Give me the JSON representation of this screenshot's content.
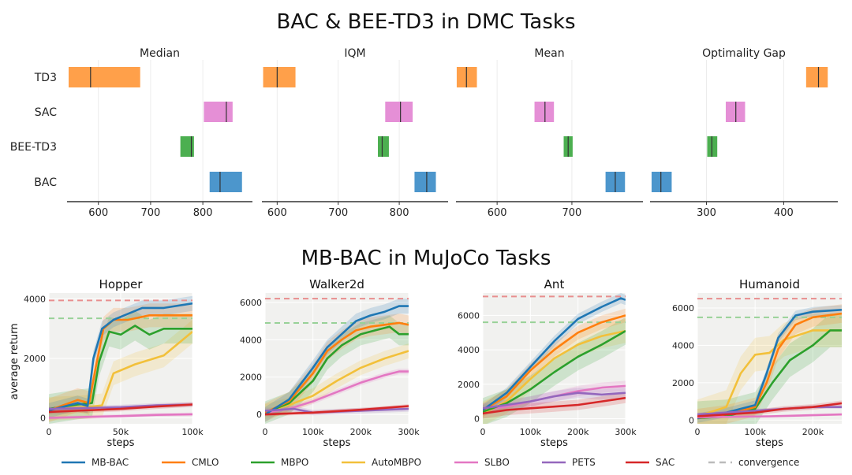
{
  "figure": {
    "title_top": "BAC & BEE-TD3 in DMC Tasks",
    "title_bottom": "MB-BAC in MuJoCo Tasks"
  },
  "colors": {
    "TD3": "#FFA04A",
    "SAC": "#E58FD6",
    "BEE-TD3": "#4CAF50",
    "BAC": "#4C96CC",
    "MB-BAC": "#1F77B4",
    "CMLO": "#FF7F0E",
    "MBPO": "#2CA02C",
    "AutoMBPO": "#F2C03A",
    "SLBO": "#E377C2",
    "PETS": "#9467BD",
    "SAC_curve": "#D62728",
    "convergence": "#BBBBBB",
    "conv_red": "#E88E8E",
    "conv_green": "#98D198"
  },
  "chart_data": [
    {
      "type": "bar",
      "subtype": "interval",
      "title": "Median",
      "categories": [
        "TD3",
        "SAC",
        "BEE-TD3",
        "BAC"
      ],
      "intervals": [
        {
          "name": "TD3",
          "low": 543,
          "high": 680,
          "point": 585
        },
        {
          "name": "SAC",
          "low": 802,
          "high": 857,
          "point": 845
        },
        {
          "name": "BEE-TD3",
          "low": 757,
          "high": 783,
          "point": 778
        },
        {
          "name": "BAC",
          "low": 813,
          "high": 875,
          "point": 833
        }
      ],
      "xlim": [
        540,
        895
      ],
      "xticks": [
        600,
        700,
        800
      ]
    },
    {
      "type": "bar",
      "subtype": "interval",
      "title": "IQM",
      "categories": [
        "TD3",
        "SAC",
        "BEE-TD3",
        "BAC"
      ],
      "intervals": [
        {
          "name": "TD3",
          "low": 577,
          "high": 630,
          "point": 600
        },
        {
          "name": "SAC",
          "low": 777,
          "high": 822,
          "point": 802
        },
        {
          "name": "BEE-TD3",
          "low": 765,
          "high": 783,
          "point": 772
        },
        {
          "name": "BAC",
          "low": 825,
          "high": 860,
          "point": 845
        }
      ],
      "xlim": [
        575,
        880
      ],
      "xticks": [
        600,
        700,
        800
      ]
    },
    {
      "type": "bar",
      "subtype": "interval",
      "title": "Mean",
      "categories": [
        "TD3",
        "SAC",
        "BEE-TD3",
        "BAC"
      ],
      "intervals": [
        {
          "name": "TD3",
          "low": 546,
          "high": 573,
          "point": 559
        },
        {
          "name": "SAC",
          "low": 650,
          "high": 676,
          "point": 664
        },
        {
          "name": "BEE-TD3",
          "low": 689,
          "high": 701,
          "point": 695
        },
        {
          "name": "BAC",
          "low": 745,
          "high": 771,
          "point": 758
        }
      ],
      "xlim": [
        545,
        795
      ],
      "xticks": [
        600,
        700
      ]
    },
    {
      "type": "bar",
      "subtype": "interval",
      "title": "Optimality Gap",
      "categories": [
        "TD3",
        "SAC",
        "BEE-TD3",
        "BAC"
      ],
      "intervals": [
        {
          "name": "TD3",
          "low": 429,
          "high": 457,
          "point": 445
        },
        {
          "name": "SAC",
          "low": 325,
          "high": 350,
          "point": 338
        },
        {
          "name": "BEE-TD3",
          "low": 301,
          "high": 314,
          "point": 307
        },
        {
          "name": "BAC",
          "low": 229,
          "high": 255,
          "point": 241
        }
      ],
      "xlim": [
        227,
        470
      ],
      "xticks": [
        300,
        400
      ]
    },
    {
      "type": "line",
      "title": "Hopper",
      "xlabel": "steps",
      "ylabel": "average return",
      "xlim": [
        0,
        100000
      ],
      "ylim": [
        -200,
        4200
      ],
      "xticks": [
        0,
        50000,
        100000
      ],
      "xticklabels": [
        "0",
        "50k",
        "100k"
      ],
      "yticks": [
        0,
        2000,
        4000
      ],
      "yticklabels": [
        "0",
        "2000",
        "4000"
      ],
      "convergence": [
        {
          "color": "conv_red",
          "y": 3950
        },
        {
          "color": "conv_green",
          "y": 3350
        }
      ],
      "series": [
        {
          "name": "AutoMBPO",
          "x": [
            0,
            20000,
            30000,
            37000,
            45000,
            60000,
            80000,
            100000
          ],
          "y": [
            300,
            350,
            380,
            420,
            1500,
            1800,
            2100,
            2900
          ],
          "band": 400
        },
        {
          "name": "MBPO",
          "x": [
            0,
            20000,
            30000,
            35000,
            42000,
            50000,
            60000,
            70000,
            80000,
            90000,
            100000
          ],
          "y": [
            300,
            450,
            500,
            1900,
            2900,
            2800,
            3100,
            2800,
            3000,
            3000,
            3000
          ],
          "band": 500
        },
        {
          "name": "CMLO",
          "x": [
            0,
            20000,
            28000,
            33000,
            38000,
            45000,
            55000,
            70000,
            85000,
            100000
          ],
          "y": [
            250,
            600,
            500,
            1800,
            3000,
            3300,
            3300,
            3450,
            3450,
            3450
          ],
          "band": 400
        },
        {
          "name": "MB-BAC",
          "x": [
            0,
            20000,
            27000,
            31000,
            37000,
            45000,
            55000,
            65000,
            80000,
            100000
          ],
          "y": [
            250,
            500,
            400,
            2000,
            3000,
            3300,
            3500,
            3700,
            3700,
            3850
          ],
          "band": 250
        },
        {
          "name": "SLBO",
          "x": [
            0,
            25000,
            50000,
            75000,
            100000
          ],
          "y": [
            0,
            30,
            60,
            100,
            120
          ],
          "band": 60
        },
        {
          "name": "PETS",
          "x": [
            0,
            25000,
            50000,
            75000,
            100000
          ],
          "y": [
            300,
            330,
            360,
            420,
            450
          ],
          "band": 80
        },
        {
          "name": "SAC",
          "x": [
            0,
            25000,
            50000,
            75000,
            100000
          ],
          "y": [
            200,
            250,
            300,
            380,
            450
          ],
          "band": 80
        }
      ]
    },
    {
      "type": "line",
      "title": "Walker2d",
      "xlabel": "steps",
      "ylabel": "",
      "xlim": [
        0,
        300000
      ],
      "ylim": [
        -500,
        6500
      ],
      "xticks": [
        0,
        100000,
        200000,
        300000
      ],
      "xticklabels": [
        "0",
        "100k",
        "200k",
        "300k"
      ],
      "yticks": [
        0,
        2000,
        4000,
        6000
      ],
      "yticklabels": [
        "0",
        "2000",
        "4000",
        "6000"
      ],
      "convergence": [
        {
          "color": "conv_red",
          "y": 6200
        },
        {
          "color": "conv_green",
          "y": 4900
        }
      ],
      "series": [
        {
          "name": "SLBO",
          "x": [
            0,
            50000,
            100000,
            150000,
            200000,
            250000,
            280000,
            300000
          ],
          "y": [
            100,
            300,
            700,
            1200,
            1700,
            2100,
            2300,
            2300
          ],
          "band": 150
        },
        {
          "name": "AutoMBPO",
          "x": [
            0,
            50000,
            100000,
            150000,
            200000,
            250000,
            300000
          ],
          "y": [
            150,
            500,
            1000,
            1800,
            2500,
            3000,
            3400
          ],
          "band": 400
        },
        {
          "name": "MBPO",
          "x": [
            0,
            50000,
            100000,
            130000,
            160000,
            200000,
            230000,
            260000,
            280000,
            300000
          ],
          "y": [
            100,
            600,
            1800,
            3000,
            3700,
            4300,
            4500,
            4700,
            4300,
            4300
          ],
          "band": 600
        },
        {
          "name": "CMLO",
          "x": [
            0,
            50000,
            100000,
            130000,
            160000,
            190000,
            220000,
            250000,
            280000,
            300000
          ],
          "y": [
            100,
            700,
            2200,
            3400,
            4000,
            4500,
            4700,
            4800,
            4900,
            4800
          ],
          "band": 500
        },
        {
          "name": "MB-BAC",
          "x": [
            0,
            50000,
            100000,
            130000,
            160000,
            190000,
            220000,
            250000,
            280000,
            300000
          ],
          "y": [
            0,
            800,
            2500,
            3600,
            4300,
            5000,
            5300,
            5500,
            5800,
            5800
          ],
          "band": 400
        },
        {
          "name": "PETS",
          "x": [
            0,
            60000,
            100000,
            150000,
            200000,
            250000,
            300000
          ],
          "y": [
            200,
            300,
            100,
            150,
            200,
            250,
            300
          ],
          "band": 150
        },
        {
          "name": "SAC",
          "x": [
            0,
            100000,
            200000,
            250000,
            300000
          ],
          "y": [
            0,
            100,
            250,
            350,
            450
          ],
          "band": 100
        }
      ]
    },
    {
      "type": "line",
      "title": "Ant",
      "xlabel": "steps",
      "ylabel": "",
      "xlim": [
        0,
        300000
      ],
      "ylim": [
        -300,
        7300
      ],
      "xticks": [
        0,
        100000,
        200000,
        300000
      ],
      "xticklabels": [
        "0",
        "100k",
        "200k",
        "300k"
      ],
      "yticks": [
        0,
        2000,
        4000,
        6000
      ],
      "yticklabels": [
        "0",
        "2000",
        "4000",
        "6000"
      ],
      "convergence": [
        {
          "color": "conv_red",
          "y": 7100
        },
        {
          "color": "conv_green",
          "y": 5600
        }
      ],
      "series": [
        {
          "name": "SLBO",
          "x": [
            0,
            50000,
            100000,
            150000,
            200000,
            250000,
            300000
          ],
          "y": [
            500,
            700,
            1000,
            1300,
            1600,
            1800,
            1900
          ],
          "band": 300
        },
        {
          "name": "AutoMBPO",
          "x": [
            0,
            50000,
            100000,
            150000,
            200000,
            250000,
            300000
          ],
          "y": [
            300,
            1000,
            2300,
            3500,
            4300,
            4800,
            5100
          ],
          "band": 700
        },
        {
          "name": "MBPO",
          "x": [
            0,
            50000,
            100000,
            150000,
            200000,
            250000,
            300000
          ],
          "y": [
            400,
            900,
            1700,
            2700,
            3600,
            4300,
            5100
          ],
          "band": 800
        },
        {
          "name": "CMLO",
          "x": [
            0,
            50000,
            100000,
            150000,
            200000,
            250000,
            300000
          ],
          "y": [
            500,
            1300,
            2800,
            4000,
            5000,
            5600,
            6000
          ],
          "band": 400
        },
        {
          "name": "MB-BAC",
          "x": [
            0,
            50000,
            100000,
            150000,
            200000,
            250000,
            290000,
            300000
          ],
          "y": [
            500,
            1500,
            3000,
            4500,
            5800,
            6500,
            7000,
            6900
          ],
          "band": 300
        },
        {
          "name": "PETS",
          "x": [
            0,
            50000,
            100000,
            150000,
            200000,
            250000,
            300000
          ],
          "y": [
            600,
            800,
            1000,
            1300,
            1500,
            1400,
            1500
          ],
          "band": 300
        },
        {
          "name": "SAC",
          "x": [
            0,
            50000,
            100000,
            150000,
            200000,
            250000,
            300000
          ],
          "y": [
            300,
            500,
            600,
            700,
            800,
            1000,
            1200
          ],
          "band": 300
        }
      ]
    },
    {
      "type": "line",
      "title": "Humanoid",
      "xlabel": "steps",
      "ylabel": "",
      "xlim": [
        0,
        250000
      ],
      "ylim": [
        -200,
        6800
      ],
      "xticks": [
        0,
        100000,
        200000
      ],
      "xticklabels": [
        "0",
        "100k",
        "200k"
      ],
      "yticks": [
        0,
        2000,
        4000,
        6000
      ],
      "yticklabels": [
        "0",
        "2000",
        "4000",
        "6000"
      ],
      "convergence": [
        {
          "color": "conv_red",
          "y": 6500
        },
        {
          "color": "conv_green",
          "y": 5500
        }
      ],
      "series": [
        {
          "name": "AutoMBPO",
          "x": [
            0,
            50000,
            75000,
            100000,
            125000,
            150000,
            200000,
            250000
          ],
          "y": [
            200,
            700,
            2500,
            3500,
            3600,
            4300,
            4800,
            4800
          ],
          "band": 900
        },
        {
          "name": "MBPO",
          "x": [
            0,
            50000,
            100000,
            130000,
            160000,
            200000,
            230000,
            250000
          ],
          "y": [
            100,
            200,
            600,
            2000,
            3200,
            4000,
            4800,
            4800
          ],
          "band": 900
        },
        {
          "name": "CMLO",
          "x": [
            0,
            50000,
            100000,
            120000,
            140000,
            170000,
            200000,
            250000
          ],
          "y": [
            100,
            300,
            700,
            2000,
            3800,
            5100,
            5500,
            5700
          ],
          "band": 500
        },
        {
          "name": "MB-BAC",
          "x": [
            0,
            50000,
            100000,
            120000,
            140000,
            170000,
            200000,
            250000
          ],
          "y": [
            100,
            400,
            800,
            2500,
            4400,
            5600,
            5800,
            5900
          ],
          "band": 250
        },
        {
          "name": "SLBO",
          "x": [
            0,
            125000,
            250000
          ],
          "y": [
            150,
            200,
            300
          ],
          "band": 60
        },
        {
          "name": "PETS",
          "x": [
            0,
            50000,
            100000,
            150000,
            200000,
            250000
          ],
          "y": [
            300,
            400,
            500,
            600,
            700,
            700
          ],
          "band": 100
        },
        {
          "name": "SAC",
          "x": [
            0,
            50000,
            100000,
            150000,
            200000,
            250000
          ],
          "y": [
            200,
            300,
            400,
            600,
            700,
            900
          ],
          "band": 150
        }
      ]
    }
  ],
  "legend": {
    "entries": [
      {
        "name": "MB-BAC",
        "color_key": "MB-BAC",
        "dashed": false
      },
      {
        "name": "CMLO",
        "color_key": "CMLO",
        "dashed": false
      },
      {
        "name": "MBPO",
        "color_key": "MBPO",
        "dashed": false
      },
      {
        "name": "AutoMBPO",
        "color_key": "AutoMBPO",
        "dashed": false
      },
      {
        "name": "SLBO",
        "color_key": "SLBO",
        "dashed": false
      },
      {
        "name": "PETS",
        "color_key": "PETS",
        "dashed": false
      },
      {
        "name": "SAC",
        "color_key": "SAC_curve",
        "dashed": false
      },
      {
        "name": "convergence",
        "color_key": "convergence",
        "dashed": true
      }
    ]
  }
}
